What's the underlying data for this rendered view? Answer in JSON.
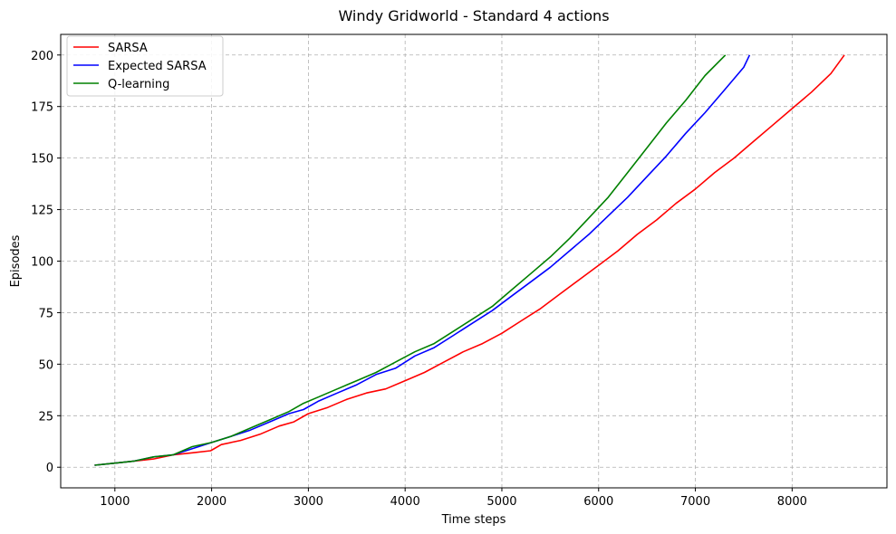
{
  "chart_data": {
    "type": "line",
    "title": "Windy Gridworld - Standard 4 actions",
    "xlabel": "Time steps",
    "ylabel": "Episodes",
    "xlim": [
      440,
      8980
    ],
    "ylim": [
      -10,
      210
    ],
    "xticks": [
      1000,
      2000,
      3000,
      4000,
      5000,
      6000,
      7000,
      8000
    ],
    "yticks": [
      0,
      25,
      50,
      75,
      100,
      125,
      150,
      175,
      200
    ],
    "grid": true,
    "grid_style": "dashed",
    "legend_position": "top-left",
    "series": [
      {
        "name": "SARSA",
        "color": "#ff0000",
        "points": [
          [
            790,
            1
          ],
          [
            1000,
            2
          ],
          [
            1200,
            3
          ],
          [
            1400,
            4
          ],
          [
            1600,
            6
          ],
          [
            1800,
            7
          ],
          [
            1990,
            8
          ],
          [
            2100,
            11
          ],
          [
            2300,
            13
          ],
          [
            2500,
            16
          ],
          [
            2700,
            20
          ],
          [
            2850,
            22
          ],
          [
            3000,
            26
          ],
          [
            3200,
            29
          ],
          [
            3400,
            33
          ],
          [
            3600,
            36
          ],
          [
            3800,
            38
          ],
          [
            4000,
            42
          ],
          [
            4200,
            46
          ],
          [
            4400,
            51
          ],
          [
            4600,
            56
          ],
          [
            4800,
            60
          ],
          [
            5000,
            65
          ],
          [
            5200,
            71
          ],
          [
            5400,
            77
          ],
          [
            5600,
            84
          ],
          [
            5800,
            91
          ],
          [
            6000,
            98
          ],
          [
            6200,
            105
          ],
          [
            6400,
            113
          ],
          [
            6600,
            120
          ],
          [
            6800,
            128
          ],
          [
            7000,
            135
          ],
          [
            7200,
            143
          ],
          [
            7400,
            150
          ],
          [
            7600,
            158
          ],
          [
            7800,
            166
          ],
          [
            8000,
            174
          ],
          [
            8200,
            182
          ],
          [
            8400,
            191
          ],
          [
            8540,
            200
          ]
        ]
      },
      {
        "name": "Expected SARSA",
        "color": "#0000ff",
        "points": [
          [
            790,
            1
          ],
          [
            1000,
            2
          ],
          [
            1200,
            3
          ],
          [
            1400,
            5
          ],
          [
            1600,
            6
          ],
          [
            1800,
            9
          ],
          [
            2000,
            12
          ],
          [
            2200,
            15
          ],
          [
            2400,
            18
          ],
          [
            2600,
            22
          ],
          [
            2800,
            26
          ],
          [
            2950,
            28
          ],
          [
            3100,
            32
          ],
          [
            3300,
            36
          ],
          [
            3500,
            40
          ],
          [
            3700,
            45
          ],
          [
            3900,
            48
          ],
          [
            4100,
            54
          ],
          [
            4300,
            58
          ],
          [
            4500,
            64
          ],
          [
            4700,
            70
          ],
          [
            4900,
            76
          ],
          [
            5100,
            83
          ],
          [
            5300,
            90
          ],
          [
            5500,
            97
          ],
          [
            5700,
            105
          ],
          [
            5900,
            113
          ],
          [
            6100,
            122
          ],
          [
            6300,
            131
          ],
          [
            6500,
            141
          ],
          [
            6700,
            151
          ],
          [
            6900,
            162
          ],
          [
            7100,
            172
          ],
          [
            7300,
            183
          ],
          [
            7500,
            194
          ],
          [
            7560,
            200
          ]
        ]
      },
      {
        "name": "Q-learning",
        "color": "#008000",
        "points": [
          [
            790,
            1
          ],
          [
            1000,
            2
          ],
          [
            1200,
            3
          ],
          [
            1400,
            5
          ],
          [
            1600,
            6
          ],
          [
            1800,
            10
          ],
          [
            2000,
            12
          ],
          [
            2200,
            15
          ],
          [
            2400,
            19
          ],
          [
            2600,
            23
          ],
          [
            2800,
            27
          ],
          [
            2950,
            31
          ],
          [
            3100,
            34
          ],
          [
            3300,
            38
          ],
          [
            3500,
            42
          ],
          [
            3700,
            46
          ],
          [
            3900,
            51
          ],
          [
            4100,
            56
          ],
          [
            4300,
            60
          ],
          [
            4500,
            66
          ],
          [
            4700,
            72
          ],
          [
            4900,
            78
          ],
          [
            5100,
            86
          ],
          [
            5300,
            94
          ],
          [
            5500,
            102
          ],
          [
            5700,
            111
          ],
          [
            5900,
            121
          ],
          [
            6100,
            131
          ],
          [
            6300,
            143
          ],
          [
            6500,
            155
          ],
          [
            6700,
            167
          ],
          [
            6900,
            178
          ],
          [
            7100,
            190
          ],
          [
            7310,
            200
          ]
        ]
      }
    ]
  }
}
